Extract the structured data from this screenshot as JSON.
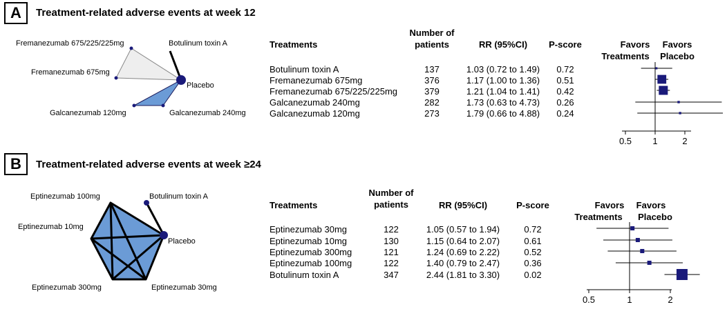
{
  "panels": [
    {
      "letter": "A",
      "title": "Treatment-related adverse events at week 12",
      "network": {
        "nodes": [
          "Fremanezumab 675/225/225mg",
          "Botulinum toxin A",
          "Fremanezumab 675mg",
          "Placebo",
          "Galcanezumab 120mg",
          "Galcanezumab 240mg"
        ]
      },
      "table": {
        "headers": {
          "treatments": "Treatments",
          "n_line1": "Number of",
          "n_line2": "patients",
          "rr": "RR (95%CI)",
          "pscore": "P-score"
        },
        "rows": [
          {
            "treatment": "Botulinum toxin A",
            "n": "137",
            "rr": "1.03 (0.72 to 1.49)",
            "pscore": "0.72"
          },
          {
            "treatment": "Fremanezumab 675mg",
            "n": "376",
            "rr": "1.17 (1.00 to 1.36)",
            "pscore": "0.51"
          },
          {
            "treatment": "Fremanezumab 675/225/225mg",
            "n": "379",
            "rr": "1.21 (1.04 to 1.41)",
            "pscore": "0.42"
          },
          {
            "treatment": "Galcanezumab 240mg",
            "n": "282",
            "rr": "1.73 (0.63 to 4.73)",
            "pscore": "0.26"
          },
          {
            "treatment": "Galcanezumab 120mg",
            "n": "273",
            "rr": "1.79 (0.66 to 4.88)",
            "pscore": "0.24"
          }
        ]
      },
      "forest": {
        "favors_label": "Favors",
        "left_label": "Treatments",
        "right_label": "Placebo",
        "ticks": [
          "0.5",
          "1",
          "2"
        ]
      }
    },
    {
      "letter": "B",
      "title": "Treatment-related adverse events at week ≥24",
      "network": {
        "nodes": [
          "Eptinezumab 100mg",
          "Botulinum toxin A",
          "Eptinezumab 10mg",
          "Placebo",
          "Eptinezumab 300mg",
          "Eptinezumab 30mg"
        ]
      },
      "table": {
        "headers": {
          "treatments": "Treatments",
          "n_line1": "Number of",
          "n_line2": "patients",
          "rr": "RR (95%CI)",
          "pscore": "P-score"
        },
        "rows": [
          {
            "treatment": "Eptinezumab 30mg",
            "n": "122",
            "rr": "1.05 (0.57 to 1.94)",
            "pscore": "0.72"
          },
          {
            "treatment": "Eptinezumab 10mg",
            "n": "130",
            "rr": "1.15 (0.64 to 2.07)",
            "pscore": "0.61"
          },
          {
            "treatment": "Eptinezumab 300mg",
            "n": "121",
            "rr": "1.24 (0.69 to 2.22)",
            "pscore": "0.52"
          },
          {
            "treatment": "Eptinezumab 100mg",
            "n": "122",
            "rr": "1.40 (0.79 to 2.47)",
            "pscore": "0.36"
          },
          {
            "treatment": "Botulinum toxin A",
            "n": "347",
            "rr": "2.44 (1.81 to 3.30)",
            "pscore": "0.02"
          }
        ]
      },
      "forest": {
        "favors_label": "Favors",
        "left_label": "Treatments",
        "right_label": "Placebo",
        "ticks": [
          "0.5",
          "1",
          "2"
        ]
      }
    }
  ],
  "chart_data": [
    {
      "type": "forest",
      "scale": "log",
      "xticks": [
        0.5,
        1,
        2
      ],
      "reference_line": 1,
      "marker_color": "#1a1a7a",
      "rows": [
        {
          "label": "Botulinum toxin A",
          "rr": 1.03,
          "lower": 0.72,
          "upper": 1.49,
          "n": 137
        },
        {
          "label": "Fremanezumab 675mg",
          "rr": 1.17,
          "lower": 1.0,
          "upper": 1.36,
          "n": 376
        },
        {
          "label": "Fremanezumab 675/225/225mg",
          "rr": 1.21,
          "lower": 1.04,
          "upper": 1.41,
          "n": 379
        },
        {
          "label": "Galcanezumab 240mg",
          "rr": 1.73,
          "lower": 0.63,
          "upper": 4.73,
          "n": 282
        },
        {
          "label": "Galcanezumab 120mg",
          "rr": 1.79,
          "lower": 0.66,
          "upper": 4.88,
          "n": 273
        }
      ]
    },
    {
      "type": "forest",
      "scale": "log",
      "xticks": [
        0.5,
        1,
        2
      ],
      "reference_line": 1,
      "marker_color": "#1a1a7a",
      "rows": [
        {
          "label": "Eptinezumab 30mg",
          "rr": 1.05,
          "lower": 0.57,
          "upper": 1.94,
          "n": 122
        },
        {
          "label": "Eptinezumab 10mg",
          "rr": 1.15,
          "lower": 0.64,
          "upper": 2.07,
          "n": 130
        },
        {
          "label": "Eptinezumab 300mg",
          "rr": 1.24,
          "lower": 0.69,
          "upper": 2.22,
          "n": 121
        },
        {
          "label": "Eptinezumab 100mg",
          "rr": 1.4,
          "lower": 0.79,
          "upper": 2.47,
          "n": 122
        },
        {
          "label": "Botulinum toxin A",
          "rr": 2.44,
          "lower": 1.81,
          "upper": 3.3,
          "n": 347
        }
      ]
    }
  ]
}
